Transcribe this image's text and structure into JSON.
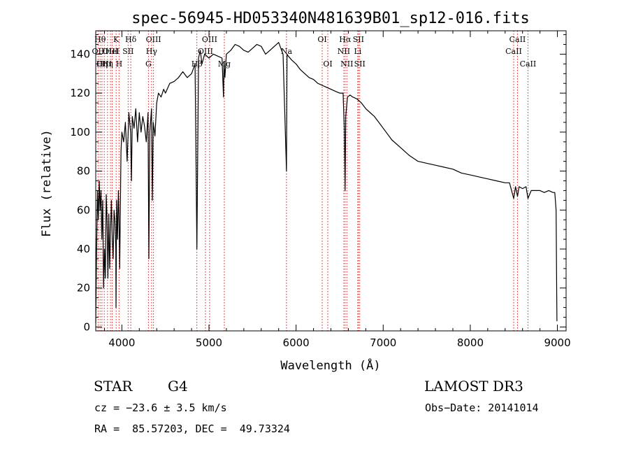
{
  "chart_data": {
    "type": "line",
    "title": "spec-56945-HD053340N481639B01_sp12-016.fits",
    "xlabel": "Wavelength (Å)",
    "ylabel": "Flux (relative)",
    "xlim": [
      3700,
      9100
    ],
    "ylim": [
      -2,
      152
    ],
    "xticks": [
      4000,
      5000,
      6000,
      7000,
      8000,
      9000
    ],
    "yticks": [
      0,
      20,
      40,
      60,
      80,
      100,
      120,
      140
    ],
    "series": [
      {
        "name": "flux",
        "x": [
          3700,
          3710,
          3720,
          3730,
          3740,
          3750,
          3760,
          3770,
          3780,
          3790,
          3800,
          3810,
          3820,
          3830,
          3840,
          3850,
          3860,
          3870,
          3880,
          3890,
          3900,
          3910,
          3920,
          3930,
          3933,
          3940,
          3950,
          3960,
          3968,
          3975,
          3990,
          4000,
          4020,
          4040,
          4060,
          4080,
          4100,
          4110,
          4120,
          4140,
          4160,
          4180,
          4200,
          4220,
          4240,
          4260,
          4280,
          4300,
          4310,
          4320,
          4340,
          4350,
          4360,
          4380,
          4400,
          4420,
          4450,
          4480,
          4500,
          4550,
          4600,
          4650,
          4700,
          4750,
          4800,
          4840,
          4861,
          4880,
          4900,
          4920,
          4950,
          5000,
          5050,
          5100,
          5150,
          5167,
          5172,
          5183,
          5200,
          5250,
          5300,
          5350,
          5400,
          5450,
          5500,
          5550,
          5600,
          5650,
          5700,
          5750,
          5800,
          5850,
          5890,
          5896,
          5910,
          5950,
          6000,
          6050,
          6100,
          6150,
          6200,
          6250,
          6300,
          6350,
          6400,
          6450,
          6500,
          6540,
          6555,
          6563,
          6570,
          6590,
          6620,
          6650,
          6700,
          6750,
          6800,
          6850,
          6900,
          6950,
          7000,
          7100,
          7200,
          7300,
          7400,
          7500,
          7600,
          7700,
          7800,
          7900,
          8000,
          8100,
          8200,
          8300,
          8400,
          8450,
          8498,
          8520,
          8542,
          8560,
          8600,
          8640,
          8662,
          8700,
          8750,
          8800,
          8850,
          8900,
          8950,
          8970,
          8985,
          8992,
          8995
        ],
        "values": [
          2,
          40,
          70,
          55,
          75,
          60,
          70,
          45,
          65,
          20,
          40,
          25,
          68,
          55,
          25,
          58,
          30,
          50,
          65,
          45,
          35,
          60,
          55,
          40,
          10,
          65,
          45,
          70,
          55,
          30,
          90,
          100,
          95,
          105,
          85,
          110,
          100,
          75,
          108,
          102,
          112,
          95,
          110,
          100,
          108,
          103,
          95,
          110,
          35,
          100,
          112,
          65,
          105,
          98,
          115,
          120,
          118,
          122,
          120,
          125,
          126,
          128,
          131,
          128,
          130,
          135,
          40,
          138,
          142,
          135,
          140,
          138,
          140,
          139,
          138,
          118,
          136,
          128,
          140,
          142,
          145,
          144,
          142,
          141,
          143,
          145,
          144,
          140,
          142,
          144,
          146,
          140,
          80,
          140,
          139,
          137,
          135,
          132,
          130,
          128,
          127,
          125,
          124,
          123,
          122,
          121,
          120,
          120,
          100,
          70,
          108,
          118,
          119,
          118,
          117,
          115,
          112,
          110,
          108,
          105,
          102,
          96,
          92,
          88,
          85,
          84,
          83,
          82,
          81,
          79,
          78,
          77,
          76,
          75,
          74,
          74,
          66,
          72,
          67,
          72,
          71,
          72,
          66,
          70,
          70,
          70,
          69,
          70,
          69,
          69,
          60,
          20,
          3
        ]
      }
    ],
    "lines": [
      {
        "w": 3727,
        "label": "OII",
        "row": 1
      },
      {
        "w": 3750,
        "label": "Hθ",
        "row": 0
      },
      {
        "w": 3771,
        "label": "Hη",
        "row": 2
      },
      {
        "w": 3798,
        "label": "OIII",
        "row": 2
      },
      {
        "w": 3835,
        "label": "Hη",
        "row": 2
      },
      {
        "w": 3869,
        "label": "OIII",
        "row": 1
      },
      {
        "w": 3889,
        "label": "HeI",
        "row": 1
      },
      {
        "w": 3934,
        "label": "K",
        "row": 0
      },
      {
        "w": 3968,
        "label": "H",
        "row": 2
      },
      {
        "w": 4072,
        "label": "SII",
        "row": 1
      },
      {
        "w": 4102,
        "label": "Hδ",
        "row": 0
      },
      {
        "w": 4305,
        "label": "G",
        "row": 2
      },
      {
        "w": 4341,
        "label": "Hγ",
        "row": 1
      },
      {
        "w": 4363,
        "label": "OIII",
        "row": 0
      },
      {
        "w": 4861,
        "label": "Hβ",
        "row": 2
      },
      {
        "w": 4959,
        "label": "OIII",
        "row": 1
      },
      {
        "w": 5007,
        "label": "OIII",
        "row": 0
      },
      {
        "w": 5176,
        "label": "Mg",
        "row": 2
      },
      {
        "w": 5890,
        "label": "Na",
        "row": 1
      },
      {
        "w": 6300,
        "label": "OI",
        "row": 0
      },
      {
        "w": 6364,
        "label": "OI",
        "row": 2
      },
      {
        "w": 6548,
        "label": "NII",
        "row": 1
      },
      {
        "w": 6563,
        "label": "Hα",
        "row": 0
      },
      {
        "w": 6583,
        "label": "NII",
        "row": 2
      },
      {
        "w": 6708,
        "label": "Li",
        "row": 1
      },
      {
        "w": 6716,
        "label": "SII",
        "row": 0
      },
      {
        "w": 6731,
        "label": "SII",
        "row": 2
      },
      {
        "w": 8498,
        "label": "CaII",
        "row": 1
      },
      {
        "w": 8542,
        "label": "CaII",
        "row": 0
      },
      {
        "w": 8662,
        "label": "CaII",
        "row": 2
      }
    ],
    "colors": {
      "spectrum": "#000000",
      "line_marker": "#cc2222",
      "axis": "#000000"
    }
  },
  "info": {
    "class": "STAR",
    "subclass": "G4",
    "survey": "LAMOST DR3",
    "cz": "cz = −23.6 ± 3.5 km/s",
    "obs_date": "Obs−Date: 20141014",
    "coords": "RA =  85.57203, DEC =  49.73324"
  }
}
